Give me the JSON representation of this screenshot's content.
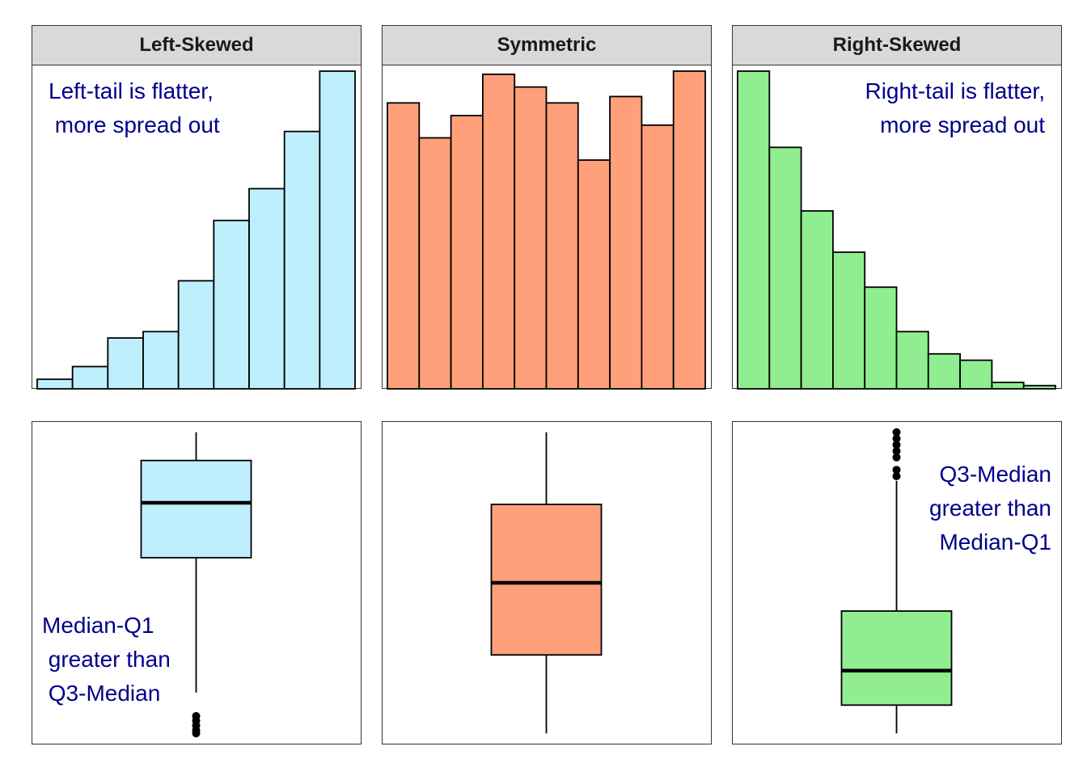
{
  "chart_data": [
    {
      "type": "bar",
      "panel": "histogram",
      "title": "Left-Skewed",
      "color": "#bfeffd",
      "values": [
        3,
        7,
        16,
        18,
        34,
        53,
        63,
        81,
        100
      ],
      "annotation": [
        "Left-tail is flatter,",
        " more spread out"
      ]
    },
    {
      "type": "bar",
      "panel": "histogram",
      "title": "Symmetric",
      "color": "#ffa07a",
      "values": [
        90,
        79,
        86,
        99,
        95,
        90,
        72,
        92,
        83,
        100
      ],
      "annotation": []
    },
    {
      "type": "bar",
      "panel": "histogram",
      "title": "Right-Skewed",
      "color": "#90ee90",
      "values": [
        100,
        76,
        56,
        43,
        32,
        18,
        11,
        9,
        2,
        1
      ],
      "annotation": [
        "Right-tail is flatter,",
        "more spread out"
      ]
    },
    {
      "type": "boxplot",
      "panel": "boxplot",
      "color": "#bfeffd",
      "ylim": [
        0,
        1
      ],
      "whisker_low": 0.15,
      "q1": 0.58,
      "median": 0.755,
      "q3": 0.89,
      "whisker_high": 0.98,
      "outliers": [
        0.02,
        0.03,
        0.045,
        0.06,
        0.075
      ],
      "annotation": [
        "Median-Q1",
        " greater than",
        " Q3-Median"
      ]
    },
    {
      "type": "boxplot",
      "panel": "boxplot",
      "color": "#ffa07a",
      "ylim": [
        0,
        1
      ],
      "whisker_low": 0.02,
      "q1": 0.27,
      "median": 0.5,
      "q3": 0.75,
      "whisker_high": 0.98,
      "outliers": [],
      "annotation": []
    },
    {
      "type": "boxplot",
      "panel": "boxplot",
      "color": "#90ee90",
      "ylim": [
        0,
        1
      ],
      "whisker_low": 0.02,
      "q1": 0.11,
      "median": 0.22,
      "q3": 0.41,
      "whisker_high": 0.825,
      "outliers": [
        0.84,
        0.86,
        0.9,
        0.92,
        0.94,
        0.96,
        0.98
      ],
      "annotation": [
        "Q3-Median",
        "greater than",
        "Median-Q1"
      ]
    }
  ]
}
